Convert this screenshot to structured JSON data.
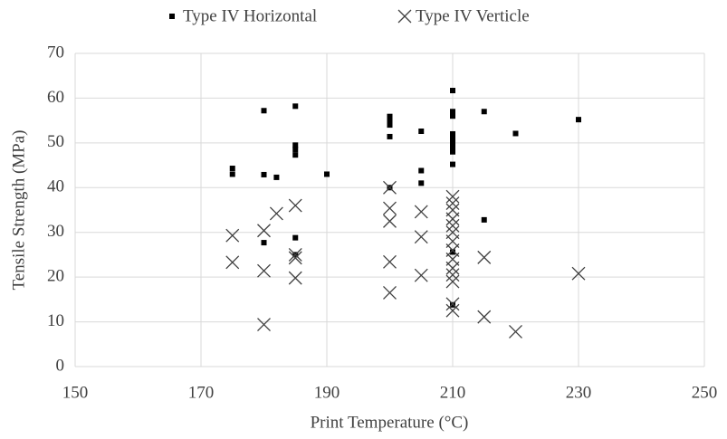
{
  "chart_data": {
    "type": "scatter",
    "xlabel": "Print Temperature (°C)",
    "ylabel": "Tensile Strength (MPa)",
    "xlim": [
      150,
      250
    ],
    "xticks": [
      150,
      170,
      190,
      210,
      230,
      250
    ],
    "ylim": [
      0,
      70
    ],
    "yticks": [
      0,
      10,
      20,
      30,
      40,
      50,
      60,
      70
    ],
    "grid": true,
    "legend": "top",
    "series": [
      {
        "name": "Type IV Horizontal",
        "marker": "square",
        "color": "#000000",
        "x": [
          175,
          175,
          180,
          180,
          180,
          182,
          185,
          185,
          185,
          185,
          185,
          185,
          190,
          200,
          200,
          200,
          200,
          200,
          205,
          205,
          205,
          210,
          210,
          210,
          210,
          210,
          210,
          210,
          210,
          210,
          210,
          210,
          215,
          215,
          220,
          230
        ],
        "values": [
          44.3,
          43,
          57.2,
          42.9,
          27.7,
          42.3,
          58.2,
          49.5,
          48.5,
          47.3,
          28.8,
          25,
          43,
          55.9,
          55,
          54,
          51.4,
          40,
          52.6,
          43.8,
          41,
          61.7,
          57,
          56,
          52,
          51,
          50,
          49,
          48,
          45.2,
          25.6,
          13.8,
          57,
          32.8,
          52.1,
          55.2
        ]
      },
      {
        "name": "Type IV Verticle",
        "marker": "x",
        "color": "#404040",
        "x": [
          175,
          175,
          180,
          180,
          180,
          182,
          185,
          185,
          185,
          185,
          200,
          200,
          200,
          200,
          200,
          205,
          205,
          205,
          210,
          210,
          210,
          210,
          210,
          210,
          210,
          210,
          210,
          210,
          210,
          210,
          210,
          210,
          215,
          215,
          220,
          230
        ],
        "values": [
          29.3,
          23.3,
          30.4,
          21.4,
          9.4,
          34.2,
          36,
          25,
          24.3,
          19.8,
          40,
          35.4,
          32.5,
          23.4,
          16.5,
          34.6,
          29,
          20.4,
          38,
          36.5,
          35,
          33,
          31.5,
          30,
          28,
          26,
          24,
          22,
          20.5,
          19,
          14,
          12.5,
          24.4,
          11.1,
          7.8,
          20.8
        ]
      }
    ]
  }
}
